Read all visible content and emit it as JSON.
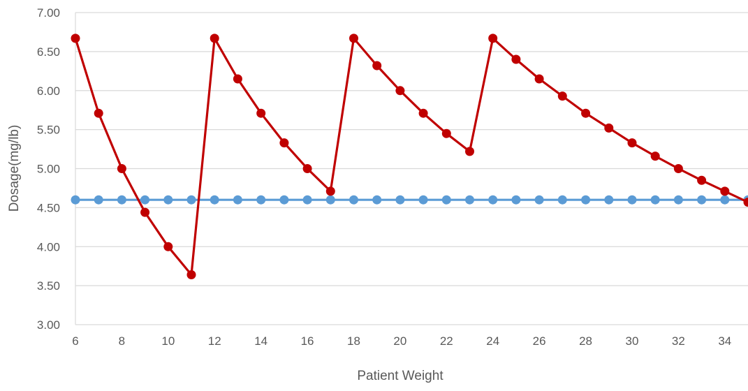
{
  "chart_data": {
    "type": "line",
    "title": "",
    "xlabel": "Patient Weight",
    "ylabel": "Dosage(mg/lb)",
    "xlim": [
      6,
      35
    ],
    "ylim": [
      3.0,
      7.0
    ],
    "x_ticks": [
      "6",
      "8",
      "10",
      "12",
      "14",
      "16",
      "18",
      "20",
      "22",
      "24",
      "26",
      "28",
      "30",
      "32",
      "34"
    ],
    "y_ticks": [
      "3.00",
      "3.50",
      "4.00",
      "4.50",
      "5.00",
      "5.50",
      "6.00",
      "6.50",
      "7.00"
    ],
    "grid": "horizontal",
    "legend": "none",
    "x": [
      6,
      7,
      8,
      9,
      10,
      11,
      12,
      13,
      14,
      15,
      16,
      17,
      18,
      19,
      20,
      21,
      22,
      23,
      24,
      25,
      26,
      27,
      28,
      29,
      30,
      31,
      32,
      33,
      34,
      35
    ],
    "series": [
      {
        "color": "#C00000",
        "values": [
          6.67,
          5.71,
          5.0,
          4.44,
          4.0,
          3.64,
          6.67,
          6.15,
          5.71,
          5.33,
          5.0,
          4.71,
          6.67,
          6.32,
          6.0,
          5.71,
          5.45,
          5.22,
          6.67,
          6.4,
          6.15,
          5.93,
          5.71,
          5.52,
          5.33,
          5.16,
          5.0,
          4.85,
          4.71,
          4.57
        ]
      },
      {
        "color": "#5B9BD5",
        "values": [
          4.6,
          4.6,
          4.6,
          4.6,
          4.6,
          4.6,
          4.6,
          4.6,
          4.6,
          4.6,
          4.6,
          4.6,
          4.6,
          4.6,
          4.6,
          4.6,
          4.6,
          4.6,
          4.6,
          4.6,
          4.6,
          4.6,
          4.6,
          4.6,
          4.6,
          4.6,
          4.6,
          4.6,
          4.6,
          4.6
        ]
      }
    ]
  },
  "colors": {
    "grid": "#D9D9D9",
    "axis_text": "#595959"
  }
}
